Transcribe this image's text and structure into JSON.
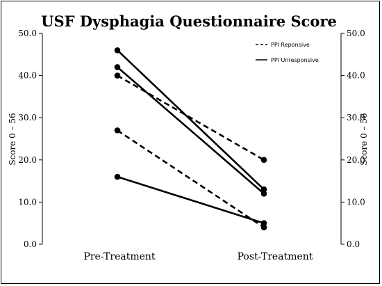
{
  "chart_data": {
    "type": "line",
    "title": "USF Dysphagia Questionnaire Score",
    "ylabel_left": "Score 0 – 56",
    "ylabel_right": "Score 0 – 56",
    "ylim": [
      0,
      50
    ],
    "yticks": [
      "0.0",
      "10.0",
      "20.0",
      "30.0",
      "40.0",
      "50.0"
    ],
    "categories": [
      "Pre-Treatment",
      "Post-Treatment"
    ],
    "grid": false,
    "legend_position": "top-right",
    "legend": [
      {
        "label": "PPI Reponsive",
        "style": "dashed"
      },
      {
        "label": "PPI Unresponsive",
        "style": "solid"
      }
    ],
    "series": [
      {
        "group": "PPI Reponsive",
        "style": "dashed",
        "values": [
          40,
          20
        ]
      },
      {
        "group": "PPI Reponsive",
        "style": "dashed",
        "values": [
          27,
          4
        ]
      },
      {
        "group": "PPI Unresponsive",
        "style": "solid",
        "values": [
          46,
          13
        ]
      },
      {
        "group": "PPI Unresponsive",
        "style": "solid",
        "values": [
          42,
          12
        ]
      },
      {
        "group": "PPI Unresponsive",
        "style": "solid",
        "values": [
          16,
          5
        ]
      }
    ]
  }
}
